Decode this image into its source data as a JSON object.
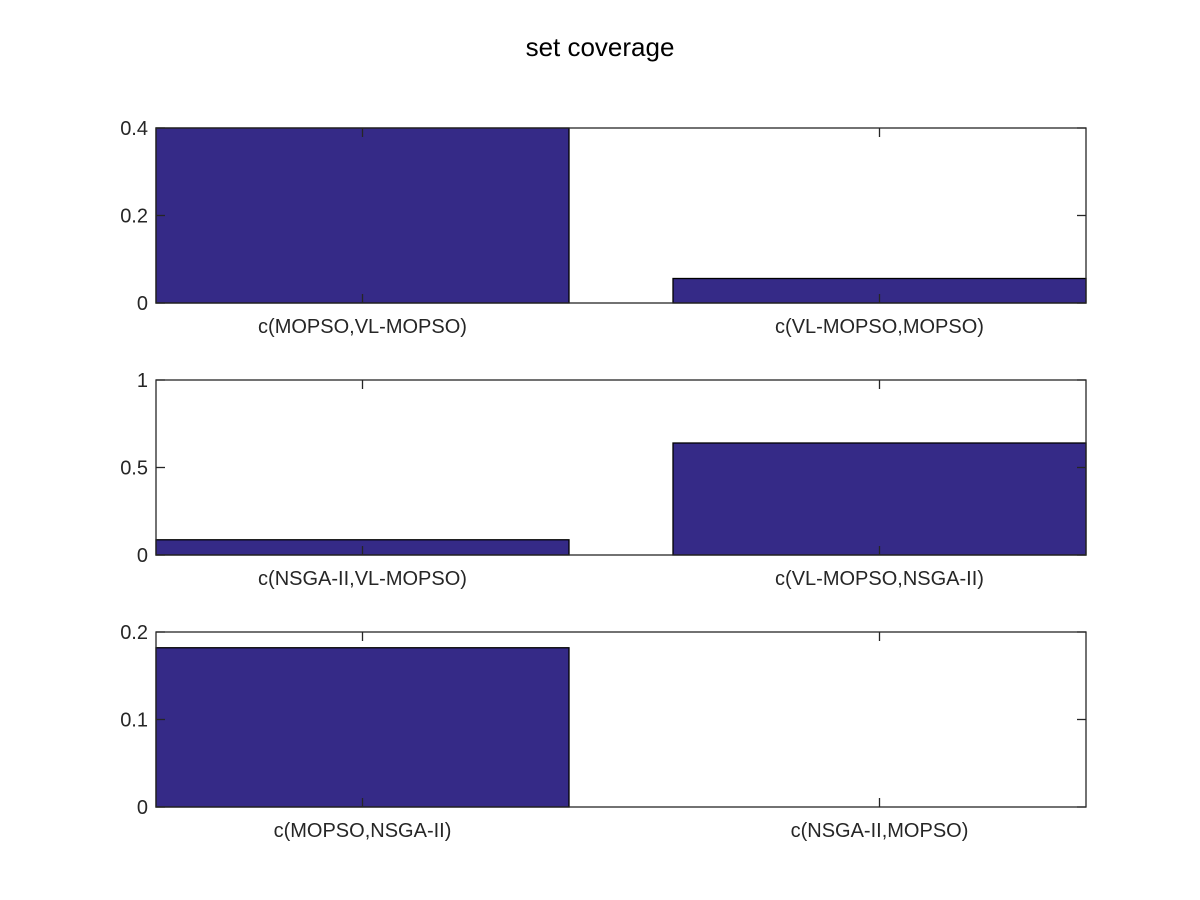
{
  "figure": {
    "title": "set coverage"
  },
  "colors": {
    "bar_fill": "#352A87",
    "axes": "#262626",
    "background": "#FFFFFF"
  },
  "chart_data": [
    {
      "type": "bar",
      "categories": [
        "c(MOPSO,VL-MOPSO)",
        "c(VL-MOPSO,MOPSO)"
      ],
      "values": [
        0.4,
        0.056
      ],
      "ylim": [
        0,
        0.4
      ],
      "yticks": [
        0,
        0.2,
        0.4
      ],
      "ytick_labels": [
        "0",
        "0.2",
        "0.4"
      ],
      "title": "set coverage",
      "xlabel": "",
      "ylabel": "",
      "grid": false
    },
    {
      "type": "bar",
      "categories": [
        "c(NSGA-II,VL-MOPSO)",
        "c(VL-MOPSO,NSGA-II)"
      ],
      "values": [
        0.087,
        0.64
      ],
      "ylim": [
        0,
        1
      ],
      "yticks": [
        0,
        0.5,
        1
      ],
      "ytick_labels": [
        "0",
        "0.5",
        "1"
      ],
      "xlabel": "",
      "ylabel": "",
      "grid": false
    },
    {
      "type": "bar",
      "categories": [
        "c(MOPSO,NSGA-II)",
        "c(NSGA-II,MOPSO)"
      ],
      "values": [
        0.182,
        0
      ],
      "ylim": [
        0,
        0.2
      ],
      "yticks": [
        0,
        0.1,
        0.2
      ],
      "ytick_labels": [
        "0",
        "0.1",
        "0.2"
      ],
      "xlabel": "",
      "ylabel": "",
      "grid": false
    }
  ]
}
